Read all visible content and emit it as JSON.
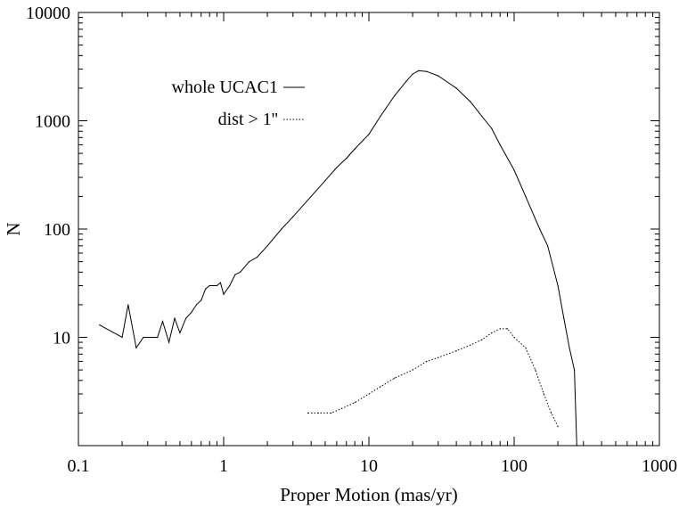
{
  "chart_data": {
    "type": "line",
    "xlabel": "Proper Motion (mas/yr)",
    "ylabel": "N",
    "xscale": "log",
    "yscale": "log",
    "xlim": [
      0.1,
      1000
    ],
    "ylim": [
      1,
      10000
    ],
    "x_ticks": [
      "0.1",
      "1",
      "10",
      "100",
      "1000"
    ],
    "y_ticks": [
      "10",
      "100",
      "1000",
      "10000"
    ],
    "grid": false,
    "legend_position": "top-left",
    "series": [
      {
        "name": "whole UCAC1",
        "style": "solid",
        "color": "#000000",
        "points": [
          [
            0.14,
            13
          ],
          [
            0.2,
            10
          ],
          [
            0.22,
            20
          ],
          [
            0.25,
            8
          ],
          [
            0.28,
            10
          ],
          [
            0.32,
            10
          ],
          [
            0.35,
            10
          ],
          [
            0.38,
            14
          ],
          [
            0.42,
            9
          ],
          [
            0.46,
            15
          ],
          [
            0.5,
            11
          ],
          [
            0.55,
            15
          ],
          [
            0.6,
            17
          ],
          [
            0.65,
            20
          ],
          [
            0.7,
            22
          ],
          [
            0.75,
            28
          ],
          [
            0.8,
            30
          ],
          [
            0.9,
            30
          ],
          [
            0.95,
            32
          ],
          [
            1.0,
            25
          ],
          [
            1.1,
            30
          ],
          [
            1.2,
            38
          ],
          [
            1.3,
            40
          ],
          [
            1.5,
            50
          ],
          [
            1.7,
            55
          ],
          [
            2.0,
            70
          ],
          [
            2.5,
            100
          ],
          [
            3.0,
            130
          ],
          [
            4.0,
            200
          ],
          [
            5.0,
            280
          ],
          [
            6.0,
            370
          ],
          [
            7.0,
            450
          ],
          [
            8.0,
            550
          ],
          [
            10,
            750
          ],
          [
            12,
            1100
          ],
          [
            15,
            1700
          ],
          [
            18,
            2300
          ],
          [
            20,
            2700
          ],
          [
            22,
            2900
          ],
          [
            25,
            2850
          ],
          [
            30,
            2600
          ],
          [
            40,
            2000
          ],
          [
            50,
            1500
          ],
          [
            60,
            1100
          ],
          [
            70,
            850
          ],
          [
            80,
            600
          ],
          [
            100,
            350
          ],
          [
            120,
            200
          ],
          [
            150,
            100
          ],
          [
            170,
            70
          ],
          [
            200,
            30
          ],
          [
            220,
            15
          ],
          [
            240,
            8
          ],
          [
            260,
            5
          ],
          [
            270,
            1
          ]
        ]
      },
      {
        "name": "dist > 1''",
        "style": "dotted",
        "color": "#000000",
        "points": [
          [
            3.8,
            2
          ],
          [
            4.5,
            2
          ],
          [
            5.5,
            2
          ],
          [
            6.5,
            2.2
          ],
          [
            8,
            2.5
          ],
          [
            10,
            3
          ],
          [
            12,
            3.5
          ],
          [
            15,
            4.2
          ],
          [
            20,
            5
          ],
          [
            25,
            6
          ],
          [
            30,
            6.5
          ],
          [
            40,
            7.5
          ],
          [
            50,
            8.5
          ],
          [
            60,
            9.5
          ],
          [
            70,
            11
          ],
          [
            80,
            12
          ],
          [
            90,
            12
          ],
          [
            100,
            10
          ],
          [
            120,
            8
          ],
          [
            140,
            5
          ],
          [
            160,
            3
          ],
          [
            180,
            2
          ],
          [
            200,
            1.5
          ]
        ]
      }
    ]
  }
}
